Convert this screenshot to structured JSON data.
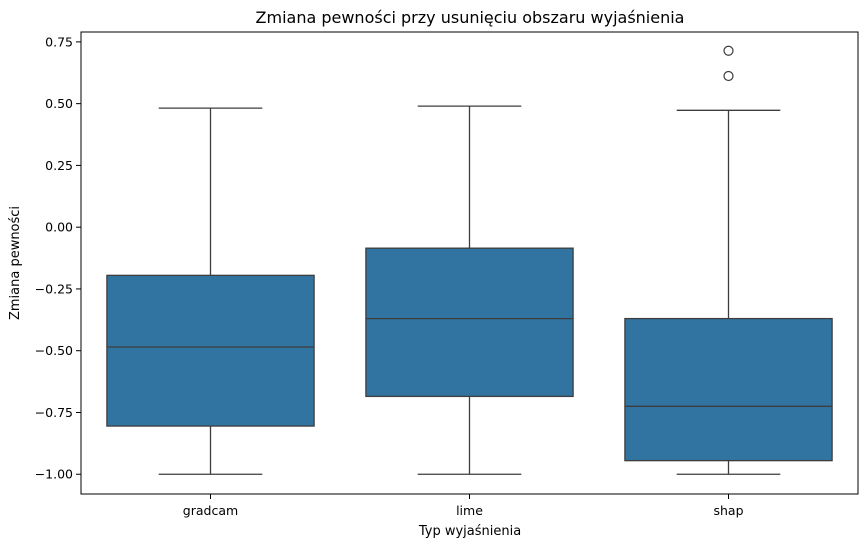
{
  "chart_data": {
    "type": "box",
    "title": "Zmiana pewności przy usunięciu obszaru wyjaśnienia",
    "xlabel": "Typ wyjaśnienia",
    "ylabel": "Zmiana pewności",
    "ylim": [
      -1.08,
      0.79
    ],
    "yticks": [
      -1.0,
      -0.75,
      -0.5,
      -0.25,
      0.0,
      0.25,
      0.5,
      0.75
    ],
    "ytick_labels": [
      "−1.00",
      "−0.75",
      "−0.50",
      "−0.25",
      "0.00",
      "0.25",
      "0.50",
      "0.75"
    ],
    "grid": false,
    "box_color": "#3274a1",
    "line_color": "#3d3d3d",
    "categories": [
      "gradcam",
      "lime",
      "shap"
    ],
    "boxes": [
      {
        "category": "gradcam",
        "whisker_low": -1.0,
        "q1": -0.805,
        "median": -0.485,
        "q3": -0.195,
        "whisker_high": 0.482,
        "outliers": []
      },
      {
        "category": "lime",
        "whisker_low": -1.0,
        "q1": -0.685,
        "median": -0.37,
        "q3": -0.085,
        "whisker_high": 0.49,
        "outliers": []
      },
      {
        "category": "shap",
        "whisker_low": -1.0,
        "q1": -0.945,
        "median": -0.725,
        "q3": -0.37,
        "whisker_high": 0.473,
        "outliers": [
          0.612,
          0.714
        ]
      }
    ]
  }
}
